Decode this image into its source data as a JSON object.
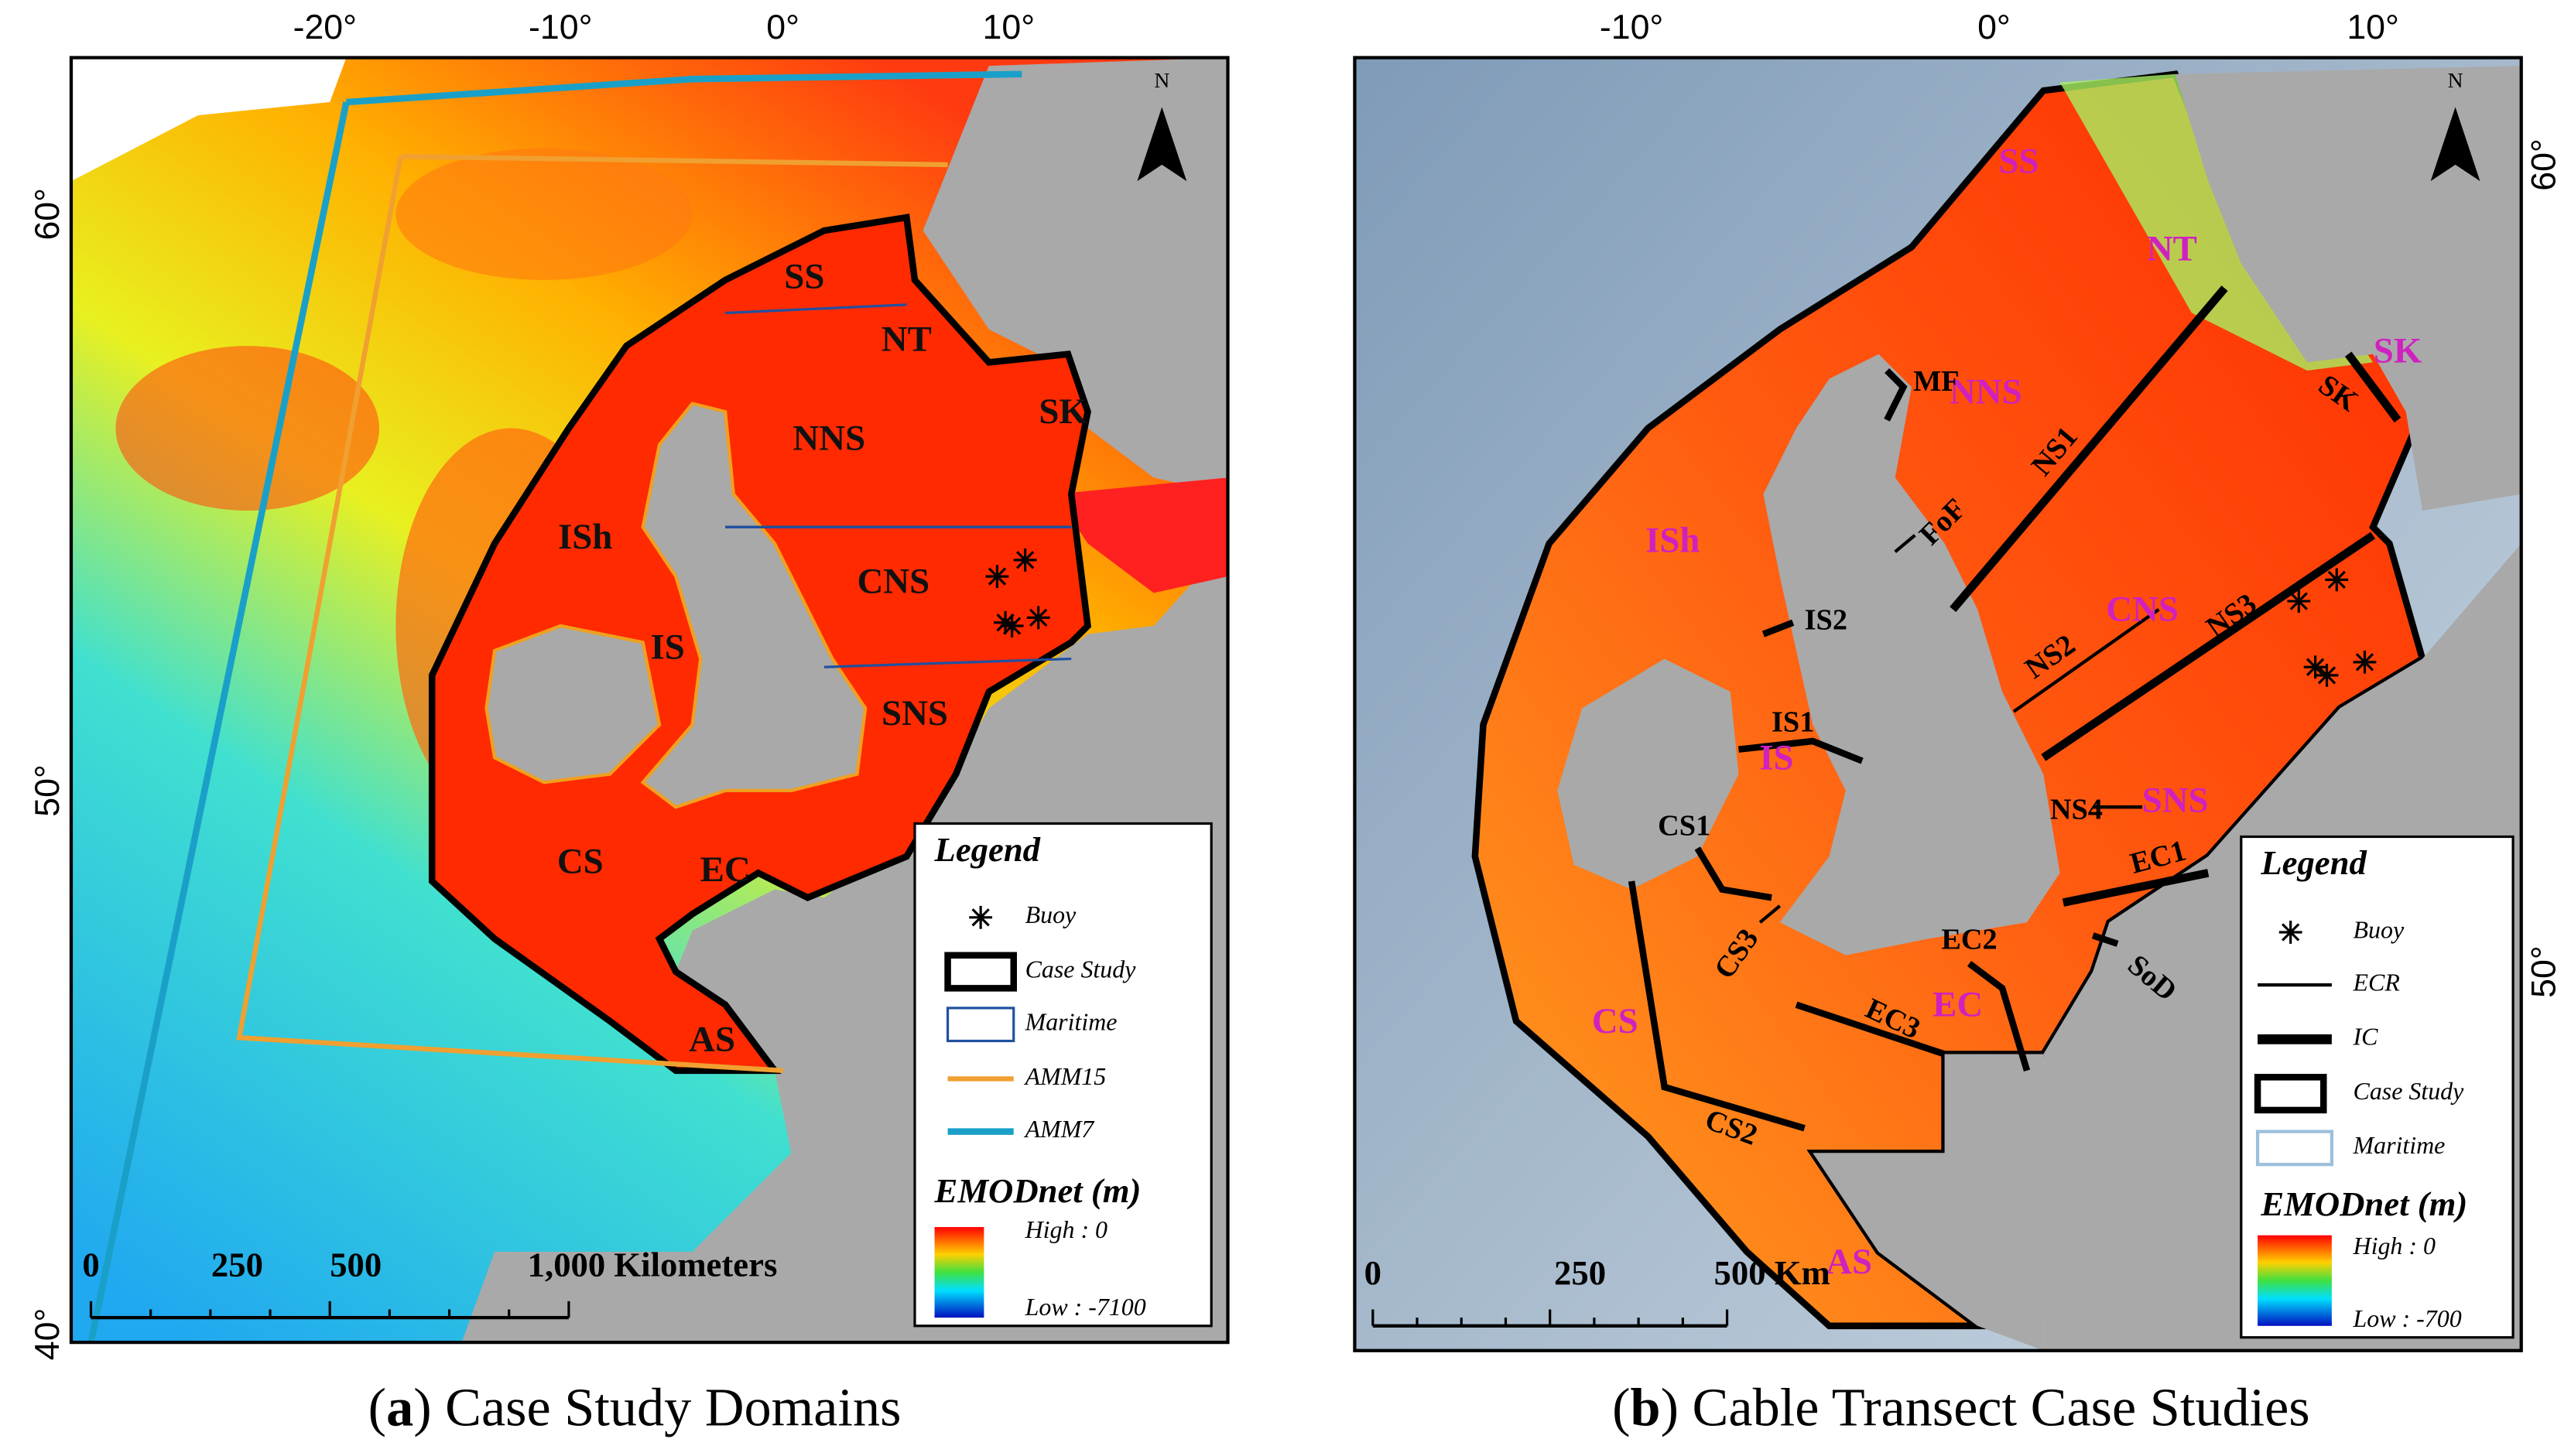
{
  "panels": [
    {
      "caption": [
        "(",
        "a",
        ") Case Study Domains"
      ],
      "lon_labels": [
        "-20°",
        "-10°",
        "0°",
        "10°"
      ],
      "lat_labels": [
        "60°",
        "50°",
        "40°"
      ],
      "regions": [
        "SS",
        "NT",
        "SK",
        "NNS",
        "ISh",
        "CNS",
        "IS",
        "SNS",
        "CS",
        "EC",
        "AS"
      ],
      "legend": {
        "title": "Legend",
        "items": [
          "Buoy",
          "Case Study",
          "Maritime",
          "AMM15",
          "AMM7"
        ],
        "colorbar_title": "EMODnet (m)",
        "high": "High : 0",
        "low": "Low : -7100"
      },
      "scale": [
        "0",
        "250",
        "500",
        "1,000 Kilometers"
      ],
      "north": "N"
    },
    {
      "caption": [
        "(",
        "b",
        ") Cable Transect Case Studies"
      ],
      "lon_labels": [
        "-10°",
        "0°",
        "10°"
      ],
      "lat_labels": [
        "60°",
        "50°"
      ],
      "regions": [
        "SS",
        "NT",
        "SK",
        "NNS",
        "ISh",
        "CNS",
        "IS",
        "SNS",
        "CS",
        "EC",
        "AS"
      ],
      "transects": [
        "MF",
        "FoF",
        "NS1",
        "IS2",
        "NS2",
        "NS3",
        "IS1",
        "NS4",
        "EC1",
        "CS1",
        "CS3",
        "EC2",
        "SoD",
        "EC3",
        "CS2",
        "SK"
      ],
      "legend": {
        "title": "Legend",
        "items": [
          "Buoy",
          "ECR",
          "IC",
          "Case Study",
          "Maritime"
        ],
        "colorbar_title": "EMODnet (m)",
        "high": "High : 0",
        "low": "Low : -700"
      },
      "scale": [
        "0",
        "250",
        "500 Km"
      ],
      "north": "N"
    }
  ]
}
